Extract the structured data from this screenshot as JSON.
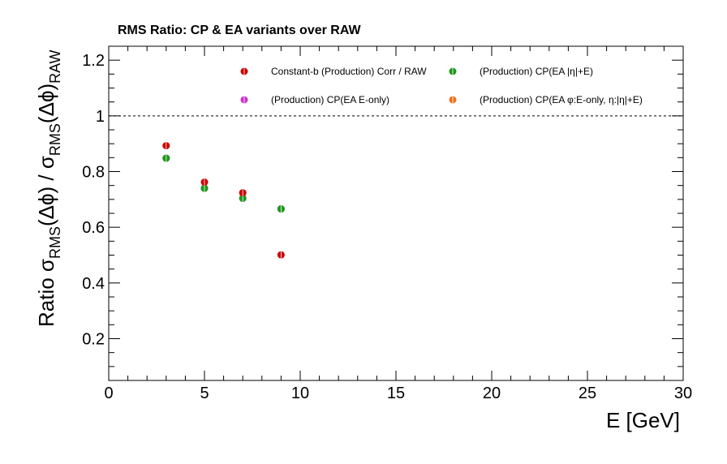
{
  "chart_data": {
    "type": "scatter",
    "title": "RMS Ratio: CP & EA variants over RAW",
    "xlabel": "E  [GeV]",
    "ylabel": {
      "prefix": "Ratio  ",
      "sigma": "σ",
      "sub1": "RMS",
      "mid": "(Δϕ) / ",
      "sigma2": "σ",
      "sub2": "RMS",
      "end": "(Δϕ)",
      "sub3": "RAW"
    },
    "xlim": [
      0,
      30
    ],
    "ylim": [
      0.05,
      1.25
    ],
    "x_ticks": [
      0,
      5,
      10,
      15,
      20,
      25,
      30
    ],
    "x_tick_labels": [
      "0",
      "5",
      "10",
      "15",
      "20",
      "25",
      "30"
    ],
    "y_ticks": [
      0.2,
      0.4,
      0.6,
      0.8,
      1.0,
      1.2
    ],
    "y_tick_labels": [
      "0.2",
      "0.4",
      "0.6",
      "0.8",
      "1",
      "1.2"
    ],
    "reference_line": 1.0,
    "grid": false,
    "legend_placement": "top",
    "series": [
      {
        "name": "Constant-b (Production) Corr / RAW",
        "color": "#cc0000",
        "x": [
          3,
          5,
          7,
          9
        ],
        "y": [
          0.893,
          0.762,
          0.724,
          0.501
        ]
      },
      {
        "name": "(Production) CP(EA |η|+E)",
        "color": "#1a9a1a",
        "x": [
          3,
          5,
          7,
          9
        ],
        "y": [
          0.848,
          0.74,
          0.704,
          0.666
        ]
      },
      {
        "name": "(Production) CP(EA E-only)",
        "color": "#cc33cc",
        "x": [
          3,
          5,
          7,
          9
        ],
        "y": [
          0.848,
          0.74,
          0.704,
          0.666
        ]
      },
      {
        "name": "(Production) CP(EA φ:E-only, η:|η|+E)",
        "color": "#f07020",
        "x": [
          3,
          5,
          7,
          9
        ],
        "y": [
          0.848,
          0.74,
          0.704,
          0.666
        ]
      }
    ]
  }
}
